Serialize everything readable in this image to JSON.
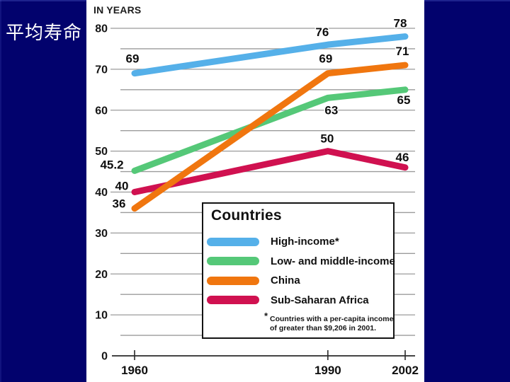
{
  "slide": {
    "title": "平均寿命",
    "background_color": "#02026d",
    "panel_color": "#ffffff"
  },
  "chart_data": {
    "type": "line",
    "title": "IN YEARS",
    "x": [
      1960,
      1990,
      2002
    ],
    "x_tick_labels": [
      "1960",
      "1990",
      "2002"
    ],
    "y_ticks": [
      0,
      10,
      20,
      30,
      40,
      50,
      60,
      70,
      80
    ],
    "y_minor_step": 5,
    "ylim": [
      0,
      80
    ],
    "grid": true,
    "gridline_color": "#9b9b9b",
    "axis_color": "#2a2a2a",
    "series": [
      {
        "name": "High-income*",
        "color": "#55b0e9",
        "values": [
          69,
          76,
          78
        ]
      },
      {
        "name": "Low- and middle-income",
        "color": "#55c878",
        "values": [
          45.2,
          63,
          65
        ]
      },
      {
        "name": "China",
        "color": "#f0760f",
        "values": [
          36,
          69,
          71
        ]
      },
      {
        "name": "Sub-Saharan Africa",
        "color": "#d01150",
        "values": [
          40,
          50,
          46
        ]
      }
    ],
    "legend": {
      "title": "Countries",
      "position": "inside-bottom-right",
      "footnote_star": "*",
      "footnote_line1": "Countries with a per-capita income",
      "footnote_line2": "of greater than $9,206 in 2001."
    }
  }
}
